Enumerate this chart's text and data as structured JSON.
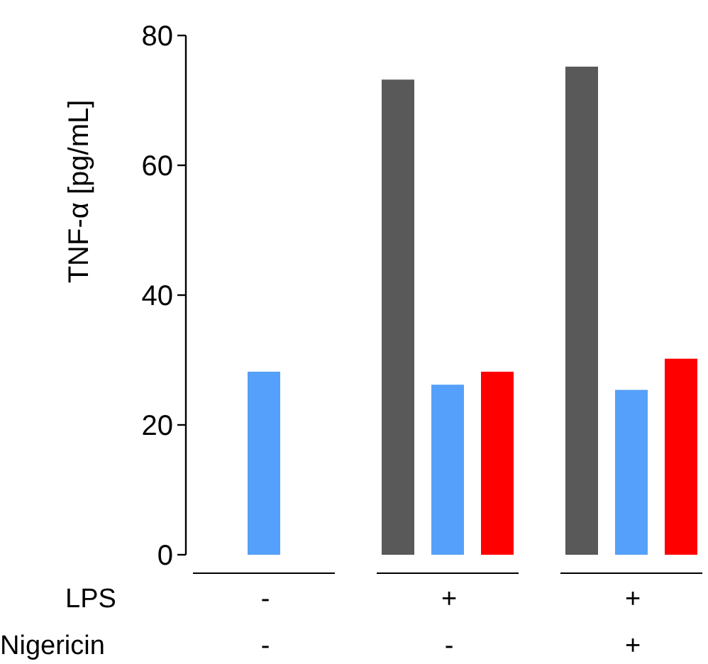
{
  "chart_data": {
    "type": "bar",
    "ylabel": "TNF-α [pg/mL]",
    "categories": [
      "-\n-",
      "+\n-",
      "+\n+"
    ],
    "annotations": [
      "LPS",
      "Nigericin"
    ],
    "series": [
      {
        "color": "#595959",
        "values": [
          null,
          73.2,
          75.2
        ]
      },
      {
        "color": "#55a0fa",
        "values": [
          28.2,
          26.2,
          25.4
        ]
      },
      {
        "color": "#ff0000",
        "values": [
          null,
          28.2,
          30.2
        ]
      }
    ],
    "ylim": [
      0,
      80
    ],
    "yticks": [
      0,
      20,
      40,
      60,
      80
    ]
  }
}
